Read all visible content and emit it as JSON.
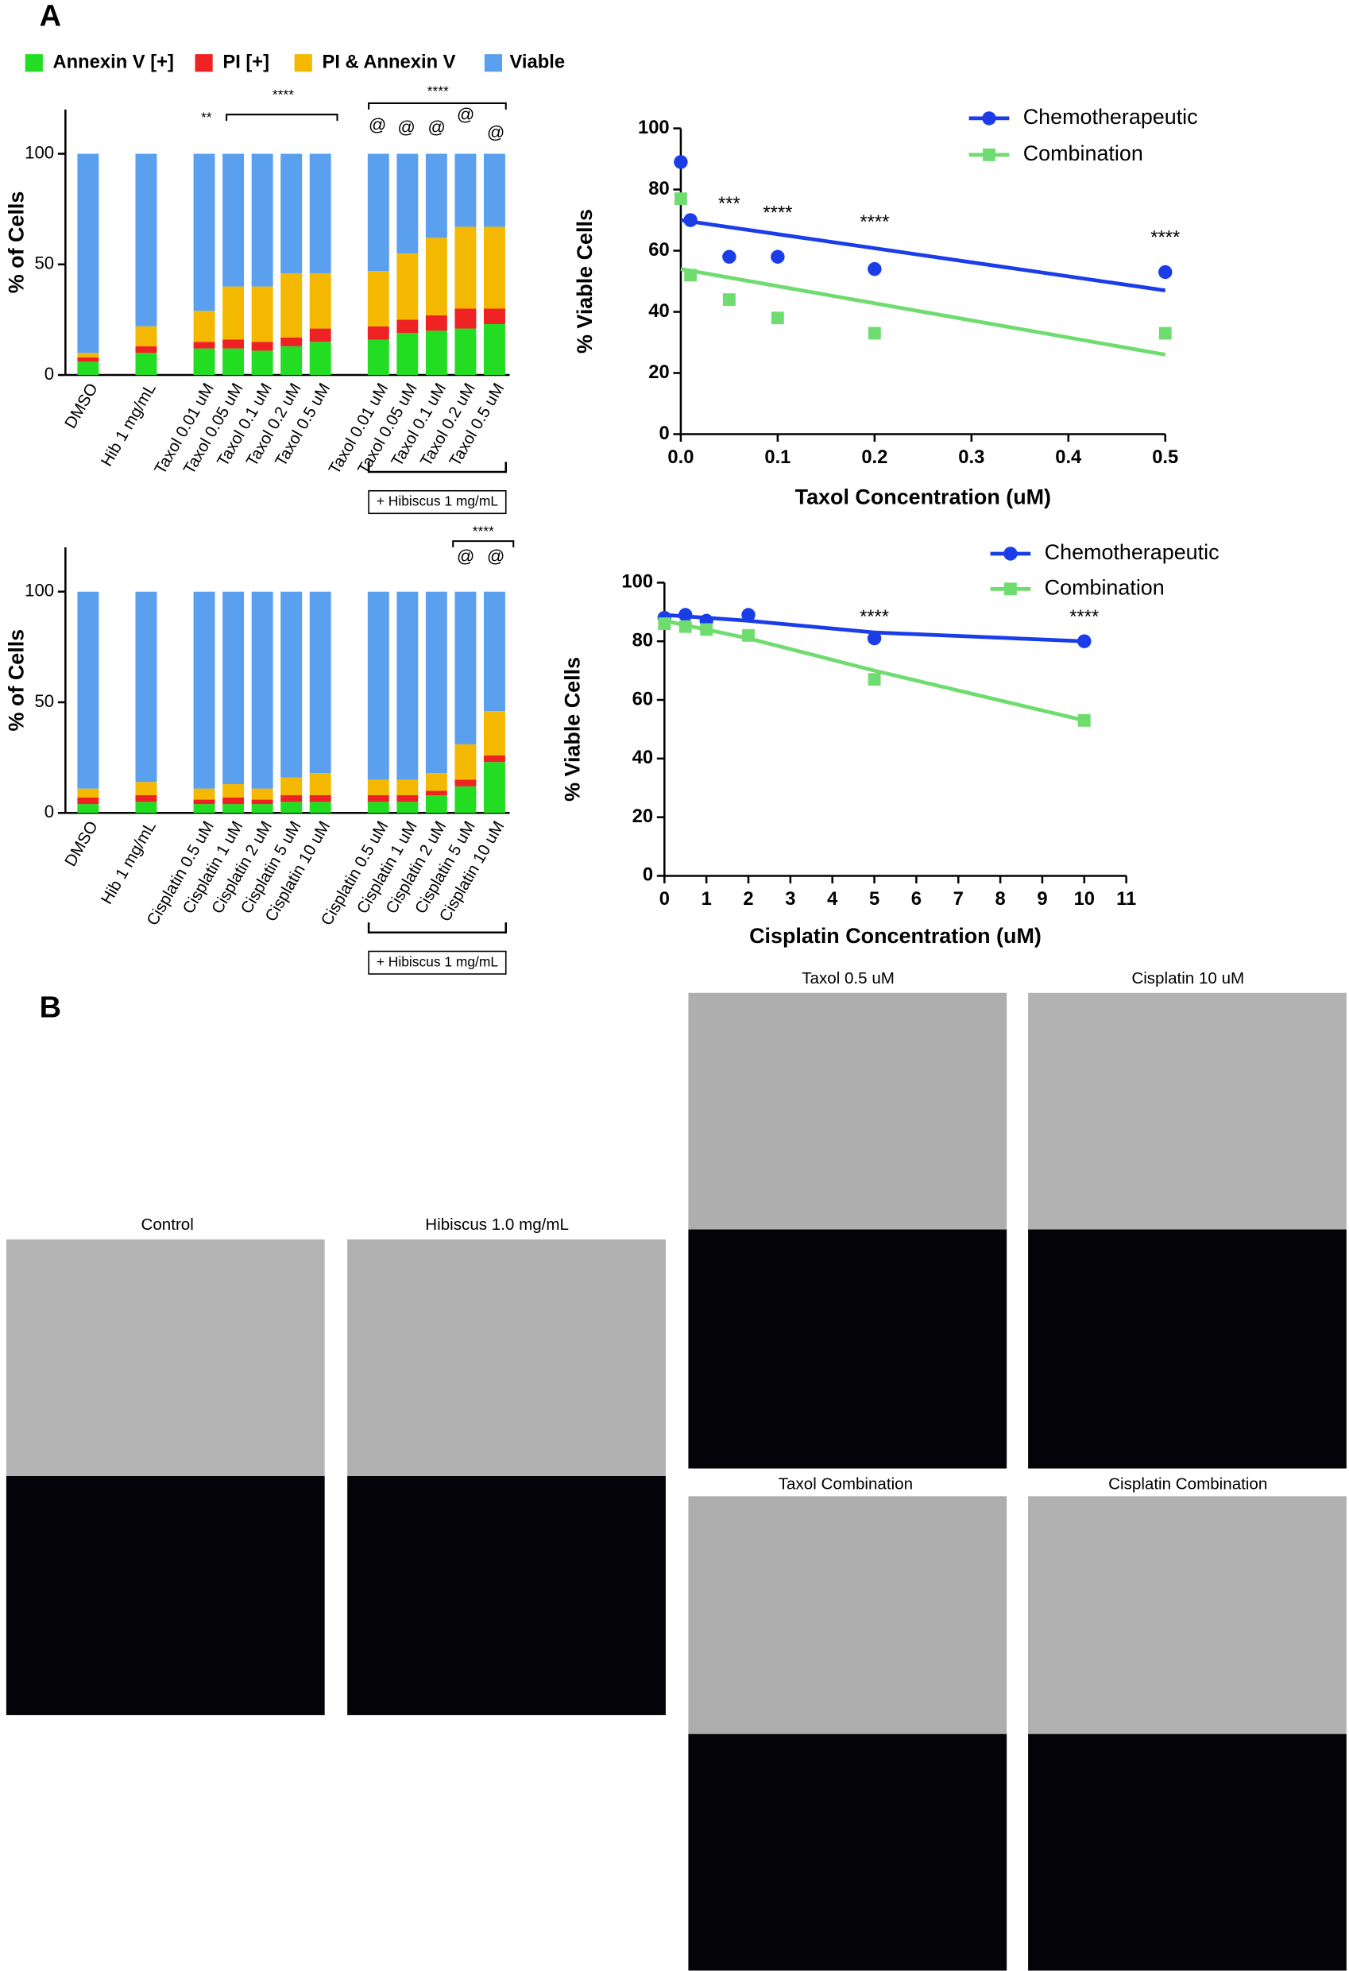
{
  "panel_labels": [
    "A",
    "B"
  ],
  "micrographs": [
    "Control",
    "Hibiscus 1.0 mg/mL",
    "Taxol 0.5 uM",
    "Cisplatin 10 uM",
    "Taxol Combination",
    "Cisplatin Combination"
  ],
  "chart_data": [
    {
      "type": "bar",
      "stacked": true,
      "legend": "top",
      "y_label": "% of Cells",
      "categories": [
        "DMSO",
        null,
        "Hib 1 mg/mL",
        null,
        "Taxol 0.01 uM",
        "Taxol 0.05 uM",
        "Taxol 0.1 uM",
        "Taxol 0.2 uM",
        "Taxol 0.5 uM",
        null,
        "Taxol 0.01 uM",
        "Taxol 0.05 uM",
        "Taxol 0.1 uM",
        "Taxol 0.2 uM",
        "Taxol 0.5 uM"
      ],
      "series": [
        {
          "name": "Annexin V [+]",
          "color": "#22dd22",
          "values": [
            6,
            null,
            10,
            null,
            12,
            12,
            11,
            13,
            15,
            null,
            16,
            19,
            20,
            21,
            23
          ]
        },
        {
          "name": "PI [+]",
          "color": "#ee2222",
          "values": [
            2,
            null,
            3,
            null,
            3,
            4,
            4,
            4,
            6,
            null,
            6,
            6,
            7,
            9,
            7
          ]
        },
        {
          "name": "PI & Annexin V",
          "color": "#f5b800",
          "values": [
            2,
            null,
            9,
            null,
            14,
            24,
            25,
            29,
            25,
            null,
            25,
            30,
            35,
            37,
            37
          ]
        },
        {
          "name": "Viable",
          "color": "#5aa0ee",
          "values": [
            90,
            null,
            78,
            null,
            71,
            60,
            60,
            54,
            54,
            null,
            53,
            45,
            38,
            33,
            33
          ]
        }
      ],
      "ylim": [
        0,
        120
      ],
      "yticks": [
        0,
        50,
        100
      ],
      "annotations": [
        "**",
        "****",
        "****",
        "@",
        "@",
        "@",
        "@",
        "@"
      ],
      "group_label": "+ Hibiscus 1 mg/mL"
    },
    {
      "type": "bar",
      "stacked": true,
      "y_label": "% of Cells",
      "categories": [
        "DMSO",
        null,
        "Hib 1 mg/mL",
        null,
        "Cisplatin 0.5 uM",
        "Cisplatin 1 uM",
        "Cisplatin 2 uM",
        "Cisplatin 5 uM",
        "Cisplatin 10 uM",
        null,
        "Cisplatin 0.5 uM",
        "Cisplatin 1 uM",
        "Cisplatin 2 uM",
        "Cisplatin 5 uM",
        "Cisplatin 10 uM"
      ],
      "series": [
        {
          "name": "Annexin V [+]",
          "color": "#22dd22",
          "values": [
            4,
            null,
            5,
            null,
            4,
            4,
            4,
            5,
            5,
            null,
            5,
            5,
            8,
            12,
            23
          ]
        },
        {
          "name": "PI [+]",
          "color": "#ee2222",
          "values": [
            3,
            null,
            3,
            null,
            2,
            3,
            2,
            3,
            3,
            null,
            3,
            3,
            2,
            3,
            3
          ]
        },
        {
          "name": "PI & Annexin V",
          "color": "#f5b800",
          "values": [
            4,
            null,
            6,
            null,
            5,
            6,
            5,
            8,
            10,
            null,
            7,
            7,
            8,
            16,
            20
          ]
        },
        {
          "name": "Viable",
          "color": "#5aa0ee",
          "values": [
            89,
            null,
            86,
            null,
            89,
            87,
            89,
            84,
            82,
            null,
            85,
            85,
            82,
            69,
            54
          ]
        }
      ],
      "ylim": [
        0,
        120
      ],
      "yticks": [
        0,
        50,
        100
      ],
      "annotations": [
        "****",
        "@",
        "@"
      ],
      "group_label": "+ Hibiscus 1 mg/mL"
    },
    {
      "type": "scatter",
      "legend": "top-right",
      "x_label": "Taxol Concentration (uM)",
      "y_label": "% Viable Cells",
      "x": [
        0,
        0.01,
        0.05,
        0.1,
        0.2,
        0.5
      ],
      "series": [
        {
          "name": "Chemotherapeutic",
          "color": "#1a3de8",
          "marker": "circle",
          "values": [
            89,
            70,
            58,
            58,
            54,
            53
          ],
          "fit_x": [
            0,
            0.5
          ],
          "fit_values": [
            70,
            47
          ]
        },
        {
          "name": "Combination",
          "color": "#6fdc6f",
          "marker": "square",
          "values": [
            77,
            52,
            44,
            38,
            33,
            33
          ],
          "fit_x": [
            0,
            0.5
          ],
          "fit_values": [
            54,
            26
          ]
        }
      ],
      "xlim": [
        0,
        0.5
      ],
      "xticks": [
        {
          "value": 0,
          "label": "0.0"
        },
        0.1,
        0.2,
        0.3,
        0.4,
        0.5
      ],
      "ylim": [
        0,
        100
      ],
      "yticks": [
        0,
        20,
        40,
        60,
        80,
        100
      ],
      "annotations": [
        {
          "x": 0.05,
          "y": 75,
          "text": "***"
        },
        {
          "x": 0.1,
          "y": 72,
          "text": "****"
        },
        {
          "x": 0.2,
          "y": 69,
          "text": "****"
        },
        {
          "x": 0.5,
          "y": 64,
          "text": "****"
        }
      ]
    },
    {
      "type": "scatter",
      "legend": "top-right",
      "x_label": "Cisplatin Concentration (uM)",
      "y_label": "% Viable Cells",
      "x": [
        0,
        0.5,
        1,
        2,
        5,
        10
      ],
      "series": [
        {
          "name": "Chemotherapeutic",
          "color": "#1a3de8",
          "marker": "circle",
          "values": [
            88,
            89,
            87,
            89,
            81,
            80
          ],
          "fit_x": [
            0,
            2,
            5,
            10
          ],
          "fit_values": [
            89,
            87,
            83,
            80
          ]
        },
        {
          "name": "Combination",
          "color": "#6fdc6f",
          "marker": "square",
          "values": [
            86,
            85,
            84,
            82,
            67,
            53
          ],
          "fit_x": [
            0,
            2,
            5,
            10
          ],
          "fit_values": [
            87,
            81,
            70,
            53
          ]
        }
      ],
      "xlim": [
        0,
        11
      ],
      "xticks": [
        0,
        1,
        2,
        3,
        4,
        5,
        6,
        7,
        8,
        9,
        10,
        11
      ],
      "ylim": [
        0,
        100
      ],
      "yticks": [
        0,
        20,
        40,
        60,
        80,
        100
      ],
      "annotations": [
        {
          "x": 5,
          "y": 88,
          "text": "****"
        },
        {
          "x": 10,
          "y": 88,
          "text": "****"
        }
      ]
    }
  ]
}
